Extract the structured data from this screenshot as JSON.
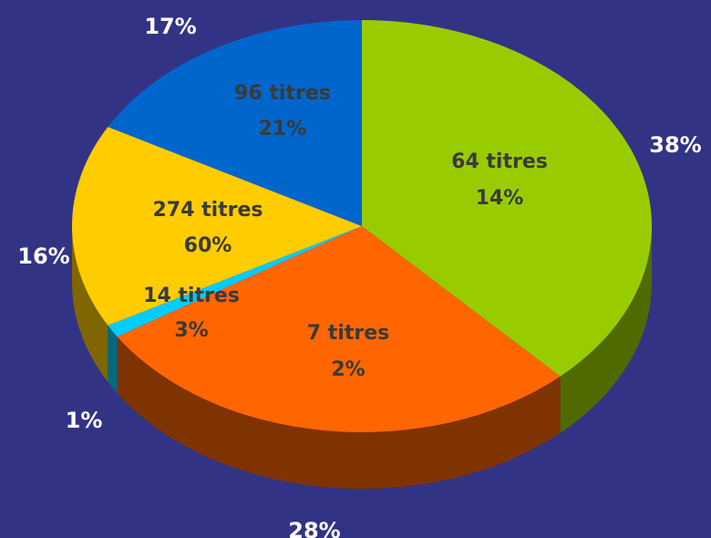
{
  "chart_data": {
    "type": "pie",
    "title": "",
    "slices": [
      {
        "outer_label": "38%",
        "percent": 38,
        "line1": "64 titres",
        "line2": "14%",
        "color": "#99CC00",
        "side_color": "#4F6B00"
      },
      {
        "outer_label": "28%",
        "percent": 28,
        "line1": "7 titres",
        "line2": "2%",
        "color": "#FF6600",
        "side_color": "#7F3300"
      },
      {
        "outer_label": "1%",
        "percent": 1,
        "line1": "14 titres",
        "line2": "3%",
        "color": "#00CCFF",
        "side_color": "#006A7F"
      },
      {
        "outer_label": "16%",
        "percent": 16,
        "line1": "274 titres",
        "line2": "60%",
        "color": "#FFCC00",
        "side_color": "#7F6600"
      },
      {
        "outer_label": "17%",
        "percent": 17,
        "line1": "96 titres",
        "line2": "21%",
        "color": "#0066CC",
        "side_color": "#003366"
      }
    ]
  }
}
